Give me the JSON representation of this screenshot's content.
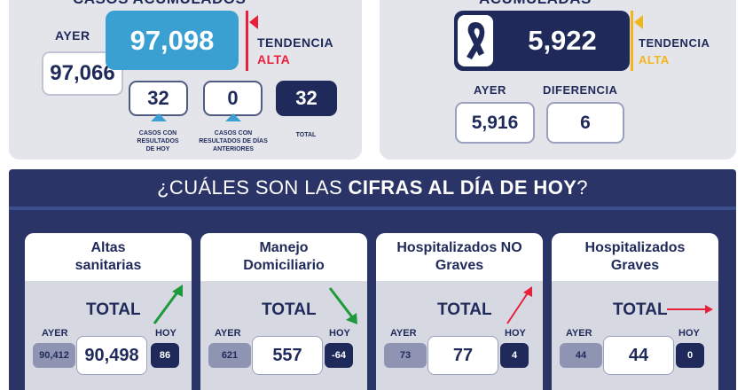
{
  "cases": {
    "title": "CASOS ACUMULADOS",
    "current": "97,098",
    "yesterday_label": "AYER",
    "yesterday": "97,066",
    "trend_label": "TENDENCIA",
    "trend_value": "ALTA",
    "today_count": "32",
    "today_caption": "CASOS CON RESULTADOS DE HOY",
    "previous_count": "0",
    "previous_caption": "CASOS CON RESULTADOS DE DÍAS ANTERIORES",
    "total_count": "32",
    "total_caption": "TOTAL"
  },
  "deaths": {
    "title": "ACUMULADAS",
    "current": "5,922",
    "trend_label": "TENDENCIA",
    "trend_value": "ALTA",
    "yesterday_label": "AYER",
    "yesterday": "5,916",
    "difference_label": "DIFERENCIA",
    "difference": "6",
    "icon": "ribbon-icon"
  },
  "today": {
    "question_prefix": "¿CUÁLES SON LAS ",
    "question_bold": "CIFRAS AL DÍA DE HOY",
    "question_suffix": "?",
    "cards": [
      {
        "title": "Altas sanitarias",
        "total_label": "TOTAL",
        "yesterday_label": "AYER",
        "today_label": "HOY",
        "yesterday": "90,412",
        "current": "90,498",
        "today": "86",
        "trend": "up",
        "trend_color": "#1e9a3c"
      },
      {
        "title": "Manejo Domiciliario",
        "total_label": "TOTAL",
        "yesterday_label": "AYER",
        "today_label": "HOY",
        "yesterday": "621",
        "current": "557",
        "today": "-64",
        "trend": "down",
        "trend_color": "#1e9a3c"
      },
      {
        "title": "Hospitalizados NO Graves",
        "total_label": "TOTAL",
        "yesterday_label": "AYER",
        "today_label": "HOY",
        "yesterday": "73",
        "current": "77",
        "today": "4",
        "trend": "up",
        "trend_color": "#e8203a"
      },
      {
        "title": "Hospitalizados Graves",
        "total_label": "TOTAL",
        "yesterday_label": "AYER",
        "today_label": "HOY",
        "yesterday": "44",
        "current": "44",
        "today": "0",
        "trend": "flat",
        "trend_color": "#e8203a"
      }
    ]
  },
  "colors": {
    "navy": "#1f2a5a",
    "cyan": "#3a9fd1",
    "red": "#e8203a",
    "amber": "#f2b51c",
    "green": "#1e9a3c"
  }
}
